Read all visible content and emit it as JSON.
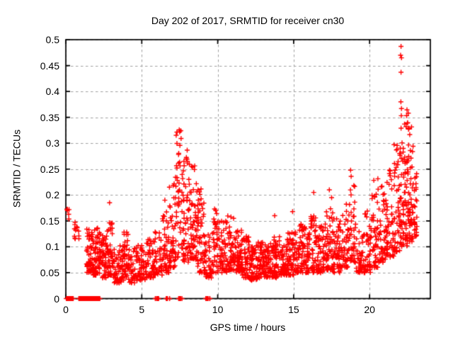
{
  "title": "Day 202 of 2017, SRMTID for receiver cn30",
  "x_axis": {
    "label": "GPS time / hours",
    "min": 0,
    "max": 24,
    "tick_values": [
      0,
      5,
      10,
      15,
      20
    ],
    "tick_labels": [
      "0",
      "5",
      "10",
      "15",
      "20"
    ]
  },
  "y_axis": {
    "label": "SRMTID / TECUs",
    "min": 0,
    "max": 0.5,
    "tick_values": [
      0,
      0.05,
      0.1,
      0.15,
      0.2,
      0.25,
      0.3,
      0.35,
      0.4,
      0.45,
      0.5
    ],
    "tick_labels": [
      "0",
      "0.05",
      "0.1",
      "0.15",
      "0.2",
      "0.25",
      "0.3",
      "0.35",
      "0.4",
      "0.45",
      "0.5"
    ]
  },
  "colors": {
    "marker": "#ff0000",
    "grid": "#a0a0a0",
    "frame": "#000000",
    "background": "#ffffff",
    "text": "#000000"
  },
  "chart_data": {
    "type": "scatter",
    "marker": "plus",
    "title": "Day 202 of 2017, SRMTID for receiver cn30",
    "xlabel": "GPS time / hours",
    "ylabel": "SRMTID / TECUs",
    "xlim": [
      0,
      24
    ],
    "ylim": [
      0,
      0.5
    ],
    "grid": "dashed-at-every-tick",
    "legend": "none",
    "seed": 42,
    "description": "Dense scatter of SRMTID vs GPS time; quiet band ~0.04-0.15 TECU through most of day, activity peak 7-9h reaching 0.33, strongest peak 22-23h reaching 0.49, clusters of exact-zero values plotted on the x-axis before 2.3h and isolated zero clusters near 5.9, 6.7, 7.5 and 9.3h",
    "clusters": [
      [
        0.03,
        0.28,
        0.148,
        0.176,
        5,
        1.0
      ],
      [
        0.55,
        0.92,
        0.115,
        0.155,
        12,
        1.2
      ],
      [
        1.35,
        1.8,
        0.05,
        0.135,
        60,
        1.6
      ],
      [
        1.8,
        2.25,
        0.045,
        0.14,
        60,
        1.7
      ],
      [
        2.25,
        2.7,
        0.04,
        0.125,
        50,
        1.6
      ],
      [
        2.7,
        3.1,
        0.045,
        0.15,
        50,
        1.7
      ],
      [
        3.1,
        3.65,
        0.03,
        0.105,
        48,
        1.5
      ],
      [
        3.65,
        4.15,
        0.035,
        0.13,
        50,
        1.6
      ],
      [
        4.15,
        4.7,
        0.03,
        0.1,
        42,
        1.5
      ],
      [
        4.7,
        5.3,
        0.035,
        0.105,
        48,
        1.5
      ],
      [
        5.3,
        5.8,
        0.04,
        0.115,
        45,
        1.5
      ],
      [
        5.8,
        6.35,
        0.045,
        0.135,
        48,
        1.6
      ],
      [
        6.35,
        6.8,
        0.05,
        0.17,
        45,
        1.7
      ],
      [
        6.8,
        7.2,
        0.06,
        0.225,
        45,
        1.8
      ],
      [
        7.2,
        7.7,
        0.08,
        0.33,
        55,
        1.8
      ],
      [
        7.7,
        8.15,
        0.07,
        0.3,
        55,
        1.8
      ],
      [
        8.15,
        8.65,
        0.075,
        0.26,
        60,
        1.6
      ],
      [
        8.65,
        9.1,
        0.05,
        0.215,
        50,
        1.6
      ],
      [
        9.1,
        9.6,
        0.04,
        0.125,
        45,
        1.5
      ],
      [
        9.6,
        10.1,
        0.05,
        0.175,
        45,
        1.7
      ],
      [
        10.1,
        10.6,
        0.05,
        0.155,
        50,
        1.6
      ],
      [
        10.6,
        11.1,
        0.055,
        0.16,
        50,
        1.6
      ],
      [
        11.1,
        11.6,
        0.05,
        0.135,
        55,
        1.5
      ],
      [
        11.6,
        12.1,
        0.04,
        0.125,
        55,
        1.5
      ],
      [
        12.1,
        12.6,
        0.035,
        0.105,
        55,
        1.4
      ],
      [
        12.6,
        13.1,
        0.04,
        0.11,
        55,
        1.4
      ],
      [
        13.1,
        13.6,
        0.04,
        0.11,
        55,
        1.4
      ],
      [
        13.6,
        14.1,
        0.04,
        0.12,
        55,
        1.4
      ],
      [
        14.1,
        14.6,
        0.045,
        0.115,
        55,
        1.5
      ],
      [
        14.6,
        15.1,
        0.045,
        0.13,
        55,
        1.5
      ],
      [
        15.1,
        15.6,
        0.05,
        0.15,
        50,
        1.6
      ],
      [
        15.6,
        16.1,
        0.05,
        0.14,
        50,
        1.5
      ],
      [
        16.1,
        16.6,
        0.05,
        0.16,
        50,
        1.6
      ],
      [
        16.6,
        17.1,
        0.05,
        0.145,
        50,
        1.5
      ],
      [
        17.1,
        17.6,
        0.055,
        0.18,
        50,
        1.6
      ],
      [
        17.6,
        18.1,
        0.05,
        0.155,
        50,
        1.5
      ],
      [
        18.1,
        18.6,
        0.06,
        0.19,
        48,
        1.6
      ],
      [
        18.6,
        19.05,
        0.07,
        0.245,
        42,
        1.7
      ],
      [
        19.05,
        19.6,
        0.05,
        0.15,
        45,
        1.5
      ],
      [
        19.6,
        20.1,
        0.05,
        0.175,
        48,
        1.6
      ],
      [
        20.1,
        20.6,
        0.06,
        0.235,
        50,
        1.7
      ],
      [
        20.6,
        21.1,
        0.07,
        0.225,
        50,
        1.6
      ],
      [
        21.1,
        21.6,
        0.08,
        0.25,
        52,
        1.6
      ],
      [
        21.6,
        22.05,
        0.09,
        0.3,
        52,
        1.6
      ],
      [
        22.05,
        22.5,
        0.1,
        0.375,
        65,
        1.5
      ],
      [
        22.5,
        22.9,
        0.11,
        0.345,
        60,
        1.5
      ],
      [
        22.9,
        23.15,
        0.12,
        0.26,
        25,
        1.4
      ]
    ],
    "zero_runs": [
      [
        0.0,
        0.5,
        55
      ],
      [
        0.85,
        2.25,
        150
      ],
      [
        5.85,
        6.15,
        10
      ],
      [
        6.6,
        6.9,
        10
      ],
      [
        7.4,
        7.7,
        10
      ],
      [
        9.2,
        9.5,
        10
      ]
    ],
    "outliers": [
      [
        0.1,
        0.17
      ],
      [
        2.88,
        0.185
      ],
      [
        6.52,
        0.19
      ],
      [
        13.75,
        0.16
      ],
      [
        14.93,
        0.168
      ],
      [
        16.32,
        0.205
      ],
      [
        17.35,
        0.21
      ],
      [
        17.5,
        0.195
      ],
      [
        18.75,
        0.248
      ],
      [
        22.07,
        0.487
      ],
      [
        22.04,
        0.47
      ],
      [
        22.1,
        0.465
      ],
      [
        22.07,
        0.437
      ],
      [
        22.06,
        0.38
      ],
      [
        22.1,
        0.367
      ],
      [
        22.3,
        0.337
      ],
      [
        22.55,
        0.358
      ]
    ]
  }
}
